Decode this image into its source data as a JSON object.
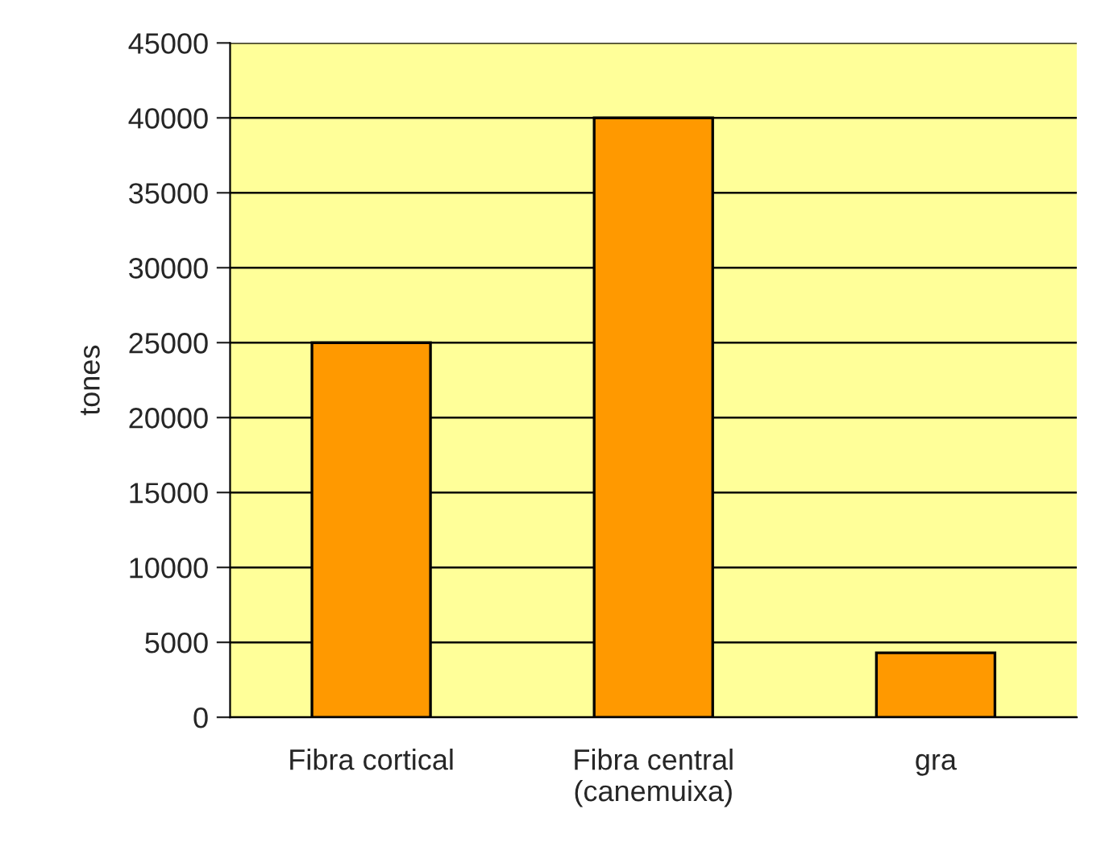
{
  "chart_data": {
    "type": "bar",
    "ylabel": "tones",
    "categories": [
      "Fibra cortical",
      "Fibra central\n(canemuixa)",
      "gra"
    ],
    "values": [
      25000,
      40000,
      4300
    ],
    "color": "#ff9900",
    "ylim": [
      0,
      45000
    ],
    "yticks": [
      0,
      5000,
      10000,
      15000,
      20000,
      25000,
      30000,
      35000,
      40000,
      45000
    ],
    "grid": "y"
  }
}
